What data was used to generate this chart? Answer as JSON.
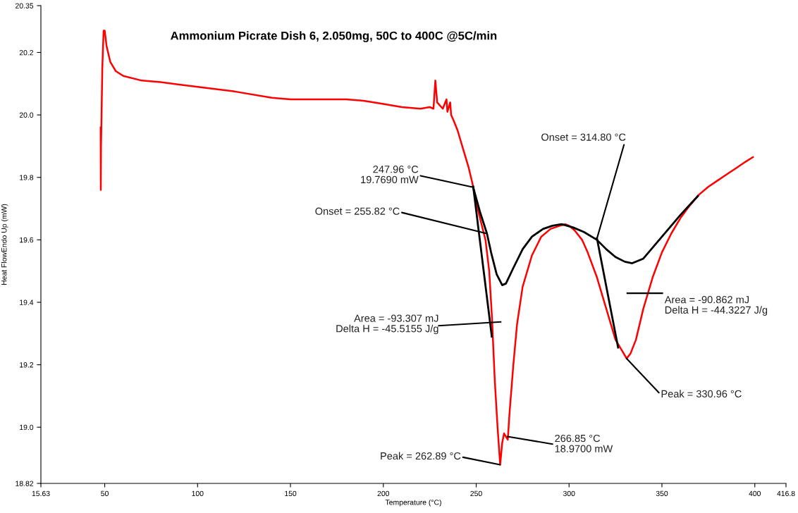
{
  "chart_data": {
    "type": "line",
    "title": "Ammonium Picrate Dish 6, 2.050mg, 50C to 400C @5C/min",
    "xlabel": "Temperature (°C)",
    "ylabel": "Heat FlowEndo Up (mW)",
    "xlim": [
      15.63,
      416.8
    ],
    "ylim": [
      18.82,
      20.35
    ],
    "xticks": [
      15.63,
      50,
      100,
      150,
      200,
      250,
      300,
      350,
      400,
      416.8
    ],
    "yticks": [
      18.82,
      {
        "value": 19.0,
        "label": "19.0"
      },
      19.2,
      19.4,
      19.6,
      19.8,
      {
        "value": 20.0,
        "label": "20.0"
      },
      20.2,
      20.35
    ],
    "grid": false,
    "marker": "none",
    "line_style": "solid",
    "series": [
      {
        "color": "#ff0000",
        "x": [
          47.8,
          47.9,
          48.0,
          48.3,
          48.7,
          49.4,
          50.0,
          51,
          53,
          56,
          60,
          70,
          80,
          100,
          120,
          140,
          150,
          160,
          180,
          190,
          200,
          210,
          220,
          225,
          227,
          228,
          229,
          232,
          234,
          234.5,
          236,
          236.5,
          238,
          240,
          243,
          246,
          248,
          250,
          252,
          255,
          257,
          258.5,
          260,
          261.5,
          262.9,
          264,
          265,
          266,
          267,
          268,
          270,
          272,
          275,
          280,
          285,
          290,
          295,
          298,
          300,
          303,
          307,
          310,
          315,
          320,
          325,
          328,
          331,
          333,
          336,
          340,
          345,
          350,
          355,
          360,
          365,
          370,
          375,
          380,
          385,
          390,
          395,
          399
        ],
        "values": [
          19.96,
          19.76,
          19.9,
          20.0,
          20.15,
          20.27,
          20.27,
          20.22,
          20.17,
          20.14,
          20.125,
          20.11,
          20.105,
          20.09,
          20.075,
          20.055,
          20.05,
          20.05,
          20.05,
          20.045,
          20.035,
          20.025,
          20.02,
          20.025,
          20.02,
          20.11,
          20.04,
          20.02,
          20.05,
          20.01,
          20.04,
          20.0,
          19.98,
          19.95,
          19.89,
          19.83,
          19.78,
          19.72,
          19.67,
          19.6,
          19.5,
          19.35,
          19.15,
          19.0,
          18.88,
          18.95,
          18.98,
          18.97,
          18.96,
          19.05,
          19.2,
          19.33,
          19.45,
          19.55,
          19.61,
          19.635,
          19.645,
          19.65,
          19.645,
          19.63,
          19.6,
          19.56,
          19.48,
          19.38,
          19.28,
          19.25,
          19.22,
          19.235,
          19.28,
          19.38,
          19.48,
          19.56,
          19.62,
          19.67,
          19.71,
          19.745,
          19.77,
          19.79,
          19.81,
          19.83,
          19.85,
          19.865
        ]
      },
      {
        "color": "#000000",
        "x": [
          248.3,
          252,
          255.8,
          258,
          261,
          264,
          266,
          270,
          275,
          280,
          286,
          291,
          296,
          302,
          308,
          315,
          320,
          325,
          330,
          334,
          340,
          350,
          360,
          369.3
        ],
        "values": [
          19.77,
          19.69,
          19.62,
          19.56,
          19.49,
          19.455,
          19.46,
          19.51,
          19.57,
          19.61,
          19.635,
          19.645,
          19.65,
          19.64,
          19.625,
          19.6,
          19.57,
          19.545,
          19.53,
          19.525,
          19.54,
          19.61,
          19.68,
          19.74
        ]
      },
      {
        "color": "#000000",
        "x": [
          248.4,
          258.4
        ],
        "values": [
          19.77,
          19.29
        ]
      },
      {
        "color": "#000000",
        "x": [
          315.0,
          326.4
        ],
        "values": [
          19.605,
          19.255
        ]
      }
    ],
    "annotations": [
      {
        "text": "247.96 °C\n19.7690 mW",
        "x": 247.96,
        "y": 19.769
      },
      {
        "text": "Onset = 255.82 °C",
        "x": 255.82,
        "y": 19.62
      },
      "Area = -93.307 mJ\nDelta H = -45.5155 J/g",
      {
        "text": "266.85 °C\n18.9700 mW",
        "x": 266.85,
        "y": 18.97
      },
      {
        "text": "Peak = 262.89 °C",
        "x": 262.89,
        "y": 18.88
      },
      {
        "text": "Onset = 314.80 °C",
        "x": 314.8,
        "y": 19.6
      },
      "Area = -90.862 mJ\nDelta H = -44.3227 J/g",
      {
        "text": "Peak = 330.96 °C",
        "x": 330.96,
        "y": 19.22
      }
    ]
  }
}
